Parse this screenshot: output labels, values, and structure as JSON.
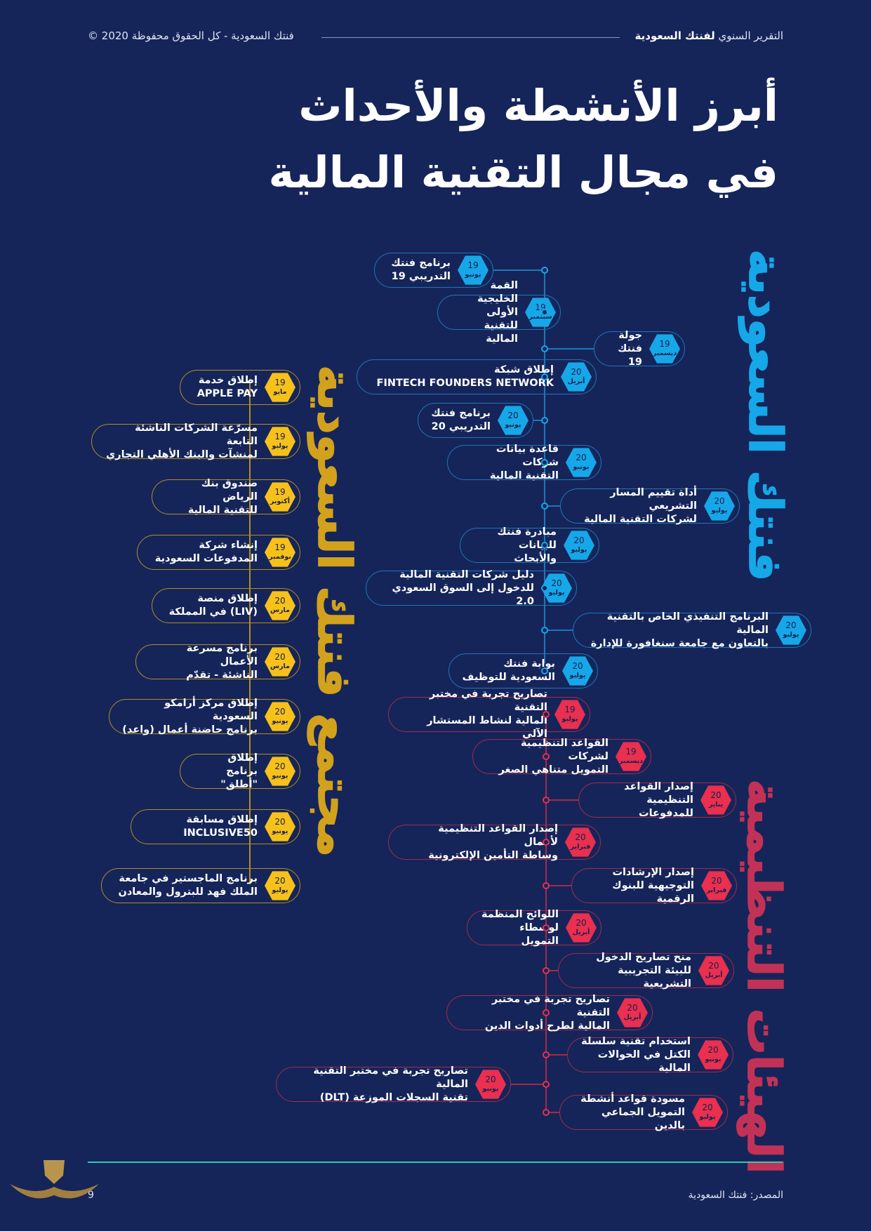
{
  "header": {
    "report_prefix": "التقرير السنوي ",
    "report_brand": "لفنتك السعودية",
    "copyright": "فنتك السعودية - كل الحقوق محفوظة 2020 ©"
  },
  "title": {
    "line1": "أبرز الأنشطة والأحداث",
    "line2": "في مجال التقنية المالية"
  },
  "groups": {
    "fintech_saudi": "فنتك السعودية",
    "community": "مجتمع فنتك السعودية",
    "regulators": "الهيئات التنظيمية"
  },
  "colors": {
    "background": "#15255a",
    "fintech_saudi": "#16a7e8",
    "community": "#f7c11a",
    "regulators": "#ea2f4f",
    "footer_line": "#34c6b8"
  },
  "fintech_saudi_events": [
    {
      "year": "19",
      "month": "يونيو",
      "text": "برنامج فنتك\nالتدريبي 19"
    },
    {
      "year": "19",
      "month": "سبتمبر",
      "text": "القمة الخليجية الأولى\nللتقنية المالية"
    },
    {
      "year": "19",
      "month": "ديسمبر",
      "text": "جولة\nفنتك 19"
    },
    {
      "year": "20",
      "month": "أبريل",
      "text": "إطلاق شبكة\nFINTECH FOUNDERS NETWORK"
    },
    {
      "year": "20",
      "month": "يونيو",
      "text": "برنامج فنتك\nالتدريبي 20"
    },
    {
      "year": "20",
      "month": "يونيو",
      "text": "قاعدة بيانات شركات\nالتقنية المالية"
    },
    {
      "year": "20",
      "month": "يوليو",
      "text": "أداة تقييم المسار التشريعي\nلشركات التقنية المالية"
    },
    {
      "year": "20",
      "month": "يوليو",
      "text": "مبادرة فنتك\nللبيانات والأبحاث"
    },
    {
      "year": "20",
      "month": "يوليو",
      "text": "دليل شركات التقنية المالية\nللدخول إلى السوق السعودي 2.0"
    },
    {
      "year": "20",
      "month": "يوليو",
      "text": "البرنامج التنفيذي الخاص بالتقنية المالية\nبالتعاون مع جامعة سنغافورة للإدارة"
    },
    {
      "year": "20",
      "month": "يوليو",
      "text": "بوابة فنتك\nالسعودية للتوظيف"
    }
  ],
  "community_events": [
    {
      "year": "19",
      "month": "مايو",
      "text": "إطلاق خدمة\nAPPLE PAY"
    },
    {
      "year": "19",
      "month": "يوليو",
      "text": "مسرّعة الشركات الناشئة التابعة\nلمنشآت والبنك الأهلي التجاري"
    },
    {
      "year": "19",
      "month": "أكتوبر",
      "text": "صندوق بنك الرياض\nللتقنية المالية"
    },
    {
      "year": "19",
      "month": "نوفمبر",
      "text": "إنشاء شركة\nالمدفوعات السعودية"
    },
    {
      "year": "20",
      "month": "مارس",
      "text": "إطلاق منصة\nفي المملكة (LIV)"
    },
    {
      "year": "20",
      "month": "مارس",
      "text": "برنامج مسرعة الأعمال\nالناشئة - تقدّم"
    },
    {
      "year": "20",
      "month": "يونيو",
      "text": "إطلاق مركز أرامكو السعودية\n(واعد) برنامج حاضنة أعمال"
    },
    {
      "year": "20",
      "month": "يونيو",
      "text": "إطلاق برنامج\n\"أطلق\""
    },
    {
      "year": "20",
      "month": "يونيو",
      "text": "إطلاق مسابقة\nINCLUSIVE50"
    },
    {
      "year": "20",
      "month": "يوليو",
      "text": "برنامج الماجستير في جامعة\nالملك فهد للبترول والمعادن"
    }
  ],
  "regulator_events": [
    {
      "year": "19",
      "month": "يوليو",
      "text": "تصاريح تجربة في مختبر التقنية\nالمالية لنشاط المستشار الآلي"
    },
    {
      "year": "19",
      "month": "ديسمبر",
      "text": "القواعد التنظيمية لشركات\nالتمويل متناهي الصغر"
    },
    {
      "year": "20",
      "month": "يناير",
      "text": "إصدار القواعد\nالتنظيمية للمدفوعات"
    },
    {
      "year": "20",
      "month": "فبراير",
      "text": "إصدار القواعد التنظيمية لأعمال\nوساطة التأمين الإلكترونية"
    },
    {
      "year": "20",
      "month": "فبراير",
      "text": "إصدار الإرشادات\nالتوجيهية للبنوك الرقمية"
    },
    {
      "year": "20",
      "month": "أبريل",
      "text": "اللوائح المنظمة\nلوسطاء التمويل"
    },
    {
      "year": "20",
      "month": "أبريل",
      "text": "منح تصاريح الدخول\nللبيئة التجريبية التشريعية"
    },
    {
      "year": "20",
      "month": "أبريل",
      "text": "تصاريح تجربة في مختبر التقنية\nالمالية لطرح أدوات الدين"
    },
    {
      "year": "20",
      "month": "يونيو",
      "text": "استخدام تقنية سلسلة\nالكتل في الحوالات المالية"
    },
    {
      "year": "20",
      "month": "يونيو",
      "text": "تصاريح تجربة في مختبر التقنية المالية\n(DLT) تقنية السجلات الموزعة"
    },
    {
      "year": "20",
      "month": "يوليو",
      "text": "مسودة قواعد أنشطة\nالتمويل الجماعي بالدين"
    }
  ],
  "footer": {
    "source": "المصدر: فنتك السعودية",
    "page_number": "9"
  }
}
